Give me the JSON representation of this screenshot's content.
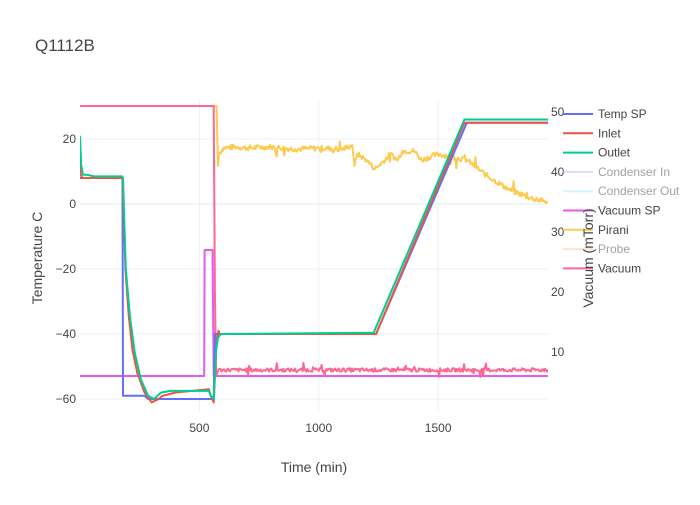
{
  "chart_data": {
    "type": "line",
    "title": "Q1112B",
    "xlabel": "Time (min)",
    "ylabel_left": "Temperature C",
    "ylabel_right": "Vacuum (mTorr)",
    "xlim": [
      0,
      1960
    ],
    "ylim_left": [
      -64,
      32
    ],
    "ylim_right": [
      0,
      52
    ],
    "x_ticks": [
      500,
      1000,
      1500
    ],
    "x_tick_labels": [
      "500",
      "1000",
      "1500"
    ],
    "y_left_ticks": [
      20,
      0,
      -20,
      -40,
      -60
    ],
    "y_left_tick_labels": [
      "20",
      "0",
      "−20",
      "−40",
      "−60"
    ],
    "y_right_ticks": [
      50,
      40,
      30,
      20,
      10
    ],
    "y_right_tick_labels": [
      "50",
      "40",
      "30",
      "20",
      "10"
    ],
    "grid": true,
    "legend_position": "right",
    "series": [
      {
        "name": "Temp SP",
        "axis": "left",
        "color": "#636efa",
        "visible": true,
        "points": [
          [
            0,
            8
          ],
          [
            178,
            8
          ],
          [
            180,
            -59
          ],
          [
            270,
            -59
          ],
          [
            285,
            -60
          ],
          [
            560,
            -60
          ],
          [
            565,
            -40
          ],
          [
            1240,
            -40
          ],
          [
            1620,
            25
          ],
          [
            1960,
            25
          ]
        ]
      },
      {
        "name": "Inlet",
        "axis": "left",
        "color": "#ef553b",
        "visible": true,
        "points": [
          [
            0,
            15
          ],
          [
            3,
            9
          ],
          [
            10,
            8
          ],
          [
            60,
            8
          ],
          [
            175,
            8
          ],
          [
            178,
            8
          ],
          [
            190,
            -20
          ],
          [
            205,
            -35
          ],
          [
            220,
            -45
          ],
          [
            240,
            -52
          ],
          [
            270,
            -58
          ],
          [
            300,
            -61
          ],
          [
            330,
            -60
          ],
          [
            345,
            -59
          ],
          [
            400,
            -58
          ],
          [
            540,
            -57
          ],
          [
            548,
            -59
          ],
          [
            560,
            -61
          ],
          [
            570,
            -45
          ],
          [
            575,
            -41
          ],
          [
            580,
            -39
          ],
          [
            585,
            -40
          ],
          [
            1240,
            -40
          ],
          [
            1610,
            25
          ],
          [
            1960,
            25
          ]
        ]
      },
      {
        "name": "Outlet",
        "axis": "left",
        "color": "#00cc96",
        "visible": true,
        "points": [
          [
            0,
            21
          ],
          [
            5,
            12
          ],
          [
            12,
            9
          ],
          [
            30,
            9
          ],
          [
            60,
            8.5
          ],
          [
            176,
            8.5
          ],
          [
            180,
            8
          ],
          [
            192,
            -20
          ],
          [
            210,
            -35
          ],
          [
            230,
            -46
          ],
          [
            255,
            -54
          ],
          [
            285,
            -59
          ],
          [
            310,
            -60
          ],
          [
            340,
            -58
          ],
          [
            380,
            -57.5
          ],
          [
            540,
            -57.5
          ],
          [
            548,
            -59
          ],
          [
            560,
            -60
          ],
          [
            570,
            -45
          ],
          [
            578,
            -41
          ],
          [
            590,
            -40
          ],
          [
            1230,
            -39.6
          ],
          [
            1610,
            26
          ],
          [
            1960,
            26
          ]
        ]
      },
      {
        "name": "Condenser In",
        "axis": "left",
        "color": "#c6b4fb",
        "visible": false,
        "points": []
      },
      {
        "name": "Condenser Out",
        "axis": "left",
        "color": "#a4ecf7",
        "visible": false,
        "points": []
      },
      {
        "name": "Vacuum SP",
        "axis": "right",
        "color": "#e35bf0",
        "visible": true,
        "points": [
          [
            0,
            6
          ],
          [
            520,
            6
          ],
          [
            522,
            27
          ],
          [
            555,
            27
          ],
          [
            560,
            6
          ],
          [
            1960,
            6
          ]
        ]
      },
      {
        "name": "Pirani",
        "axis": "right",
        "color": "#fecb52",
        "visible": true,
        "points": [
          [
            560,
            51
          ],
          [
            572,
            51
          ],
          [
            578,
            41
          ],
          [
            582,
            43
          ],
          [
            600,
            44
          ],
          [
            650,
            44.2
          ],
          [
            700,
            44
          ],
          [
            800,
            44.2
          ],
          [
            900,
            43.8
          ],
          [
            1000,
            44
          ],
          [
            1100,
            43.8
          ],
          [
            1140,
            44.5
          ],
          [
            1150,
            41
          ],
          [
            1160,
            43
          ],
          [
            1200,
            42
          ],
          [
            1235,
            40.5
          ],
          [
            1250,
            41
          ],
          [
            1300,
            43
          ],
          [
            1330,
            42
          ],
          [
            1350,
            43.5
          ],
          [
            1400,
            43.5
          ],
          [
            1430,
            42
          ],
          [
            1500,
            43
          ],
          [
            1560,
            42.5
          ],
          [
            1620,
            42
          ],
          [
            1700,
            39.5
          ],
          [
            1800,
            37
          ],
          [
            1900,
            35.5
          ],
          [
            1960,
            35
          ]
        ]
      },
      {
        "name": "Probe",
        "axis": "right",
        "color": "#fcc79d",
        "visible": false,
        "points": []
      },
      {
        "name": "Vacuum",
        "axis": "right",
        "color": "#ff6692",
        "visible": true,
        "points": [
          [
            0,
            51
          ],
          [
            555,
            51
          ],
          [
            560,
            51
          ],
          [
            565,
            20
          ],
          [
            570,
            6
          ],
          [
            580,
            7
          ],
          [
            1960,
            7
          ]
        ]
      }
    ]
  }
}
